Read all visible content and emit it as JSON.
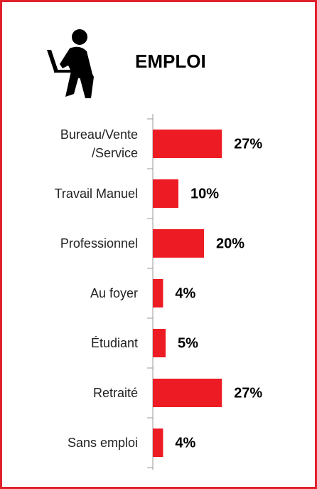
{
  "chart_data": {
    "type": "barh",
    "title": "EMPLOI",
    "categories": [
      "Bureau/Vente\n/Service",
      "Travail Manuel",
      "Professionnel",
      "Au foyer",
      "Étudiant",
      "Retraité",
      "Sans emploi"
    ],
    "values": [
      27,
      10,
      20,
      4,
      5,
      27,
      4
    ],
    "value_labels": [
      "27%",
      "10%",
      "20%",
      "4%",
      "5%",
      "27%",
      "4%"
    ],
    "color": "#ed1c24"
  }
}
